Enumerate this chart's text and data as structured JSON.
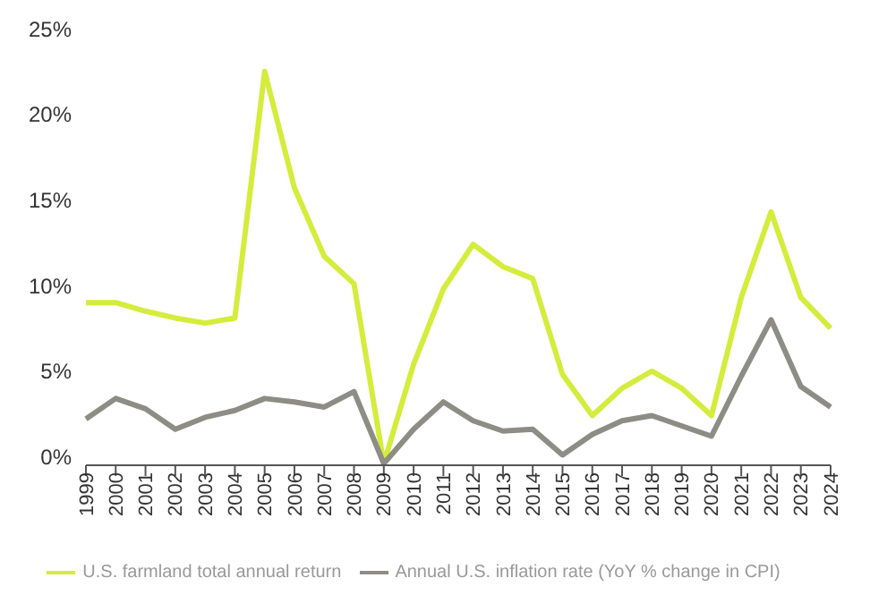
{
  "chart_data": {
    "type": "line",
    "categories": [
      "1999",
      "2000",
      "2001",
      "2002",
      "2003",
      "2004",
      "2005",
      "2006",
      "2007",
      "2008",
      "2009",
      "2010",
      "2011",
      "2012",
      "2013",
      "2014",
      "2015",
      "2016",
      "2017",
      "2018",
      "2019",
      "2020",
      "2021",
      "2022",
      "2023",
      "2024"
    ],
    "series": [
      {
        "name": "U.S. farmland total annual return",
        "color": "#d4ec3c",
        "values": [
          9.0,
          9.0,
          8.5,
          8.1,
          7.8,
          8.1,
          22.5,
          15.7,
          11.7,
          10.1,
          -0.4,
          5.4,
          9.8,
          12.4,
          11.1,
          10.4,
          4.8,
          2.4,
          4.0,
          5.0,
          4.0,
          2.4,
          9.3,
          14.3,
          9.3,
          7.5
        ]
      },
      {
        "name": "Annual U.S. inflation rate (YoY % change in CPI)",
        "color": "#8d8d86",
        "values": [
          2.2,
          3.4,
          2.8,
          1.6,
          2.3,
          2.7,
          3.4,
          3.2,
          2.9,
          3.8,
          -0.4,
          1.6,
          3.2,
          2.1,
          1.5,
          1.6,
          0.1,
          1.3,
          2.1,
          2.4,
          1.8,
          1.2,
          4.7,
          8.0,
          4.1,
          2.9
        ]
      }
    ],
    "ylim": [
      -0.5,
      25
    ],
    "yticks": [
      {
        "value": 0,
        "label": "0%"
      },
      {
        "value": 5,
        "label": "5%"
      },
      {
        "value": 10,
        "label": "10%"
      },
      {
        "value": 15,
        "label": "15%"
      },
      {
        "value": 20,
        "label": "20%"
      },
      {
        "value": 25,
        "label": "25%"
      }
    ],
    "grid": false,
    "legend": "bottom",
    "marker": "none",
    "line_style": "solid"
  }
}
